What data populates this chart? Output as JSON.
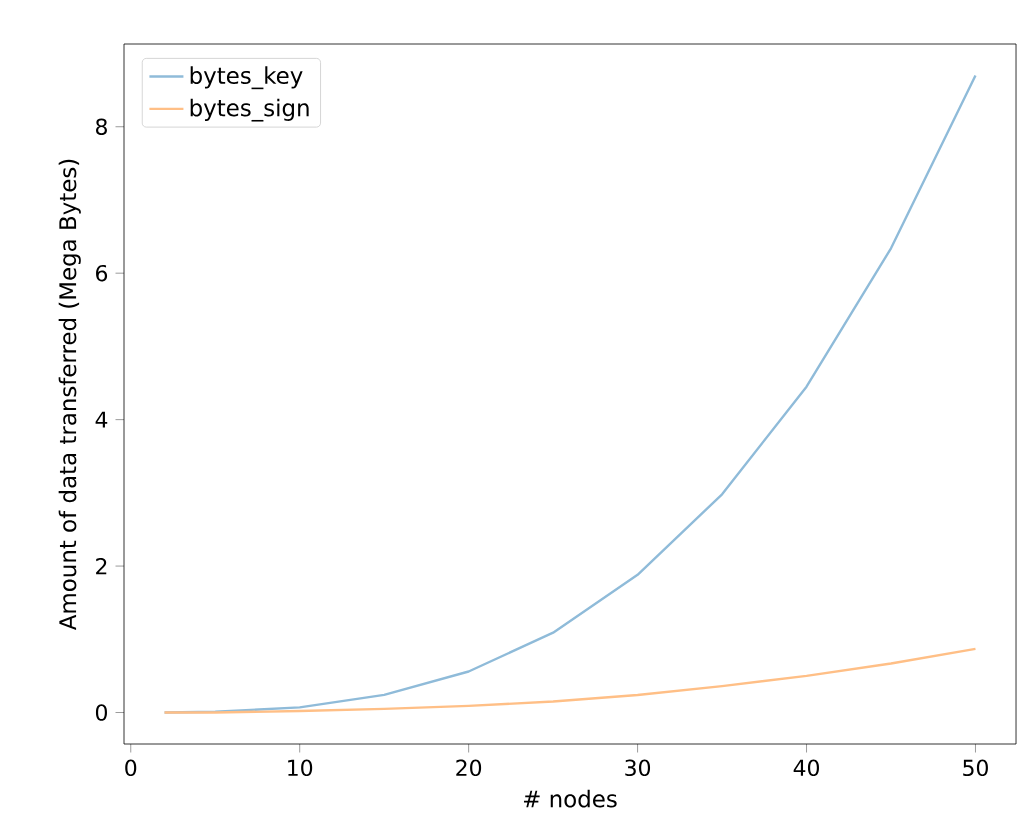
{
  "chart_data": {
    "type": "line",
    "xlabel": "# nodes",
    "ylabel": "Amount of data transferred (Mega Bytes)",
    "x": [
      2,
      5,
      10,
      15,
      20,
      25,
      30,
      35,
      40,
      45,
      50
    ],
    "series": [
      {
        "name": "bytes_key",
        "color": "#8fbbd9",
        "values": [
          0.0,
          0.01,
          0.07,
          0.24,
          0.56,
          1.09,
          1.88,
          2.98,
          4.45,
          6.34,
          8.7
        ]
      },
      {
        "name": "bytes_sign",
        "color": "#ffbf86",
        "values": [
          0.0,
          0.0,
          0.02,
          0.05,
          0.09,
          0.15,
          0.24,
          0.36,
          0.5,
          0.67,
          0.87
        ]
      }
    ],
    "xlim": [
      -0.4,
      52.4
    ],
    "ylim": [
      -0.43,
      9.13
    ],
    "xticks": [
      0,
      10,
      20,
      30,
      40,
      50
    ],
    "yticks": [
      0,
      2,
      4,
      6,
      8
    ],
    "legend": "top left",
    "grid": false,
    "marker": "none",
    "line_style": "solid"
  }
}
